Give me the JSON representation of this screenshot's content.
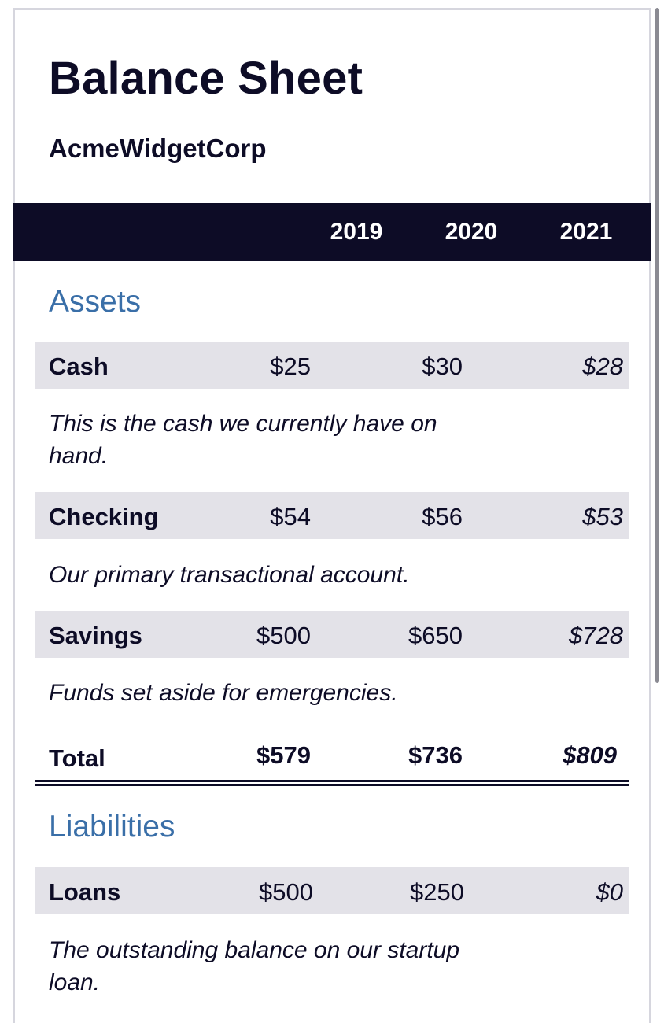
{
  "title": "Balance Sheet",
  "company": "AcmeWidgetCorp",
  "years": [
    "2019",
    "2020",
    "2021"
  ],
  "colors": {
    "header_bg": "#0d0c26",
    "section_title": "#3a6fa8",
    "row_bg": "#e3e2e8"
  },
  "assets": {
    "heading": "Assets",
    "rows": [
      {
        "label": "Cash",
        "values": [
          "$25",
          "$30",
          "$28"
        ],
        "note": "This is the cash we currently have on hand."
      },
      {
        "label": "Checking",
        "values": [
          "$54",
          "$56",
          "$53"
        ],
        "note": "Our primary transactional account."
      },
      {
        "label": "Savings",
        "values": [
          "$500",
          "$650",
          "$728"
        ],
        "note": "Funds set aside for emergencies."
      }
    ],
    "total": {
      "label": "Total",
      "values": [
        "$579",
        "$736",
        "$809"
      ]
    }
  },
  "liabilities": {
    "heading": "Liabilities",
    "rows": [
      {
        "label": "Loans",
        "values": [
          "$500",
          "$250",
          "$0"
        ],
        "note": "The outstanding balance on our startup loan."
      }
    ]
  }
}
